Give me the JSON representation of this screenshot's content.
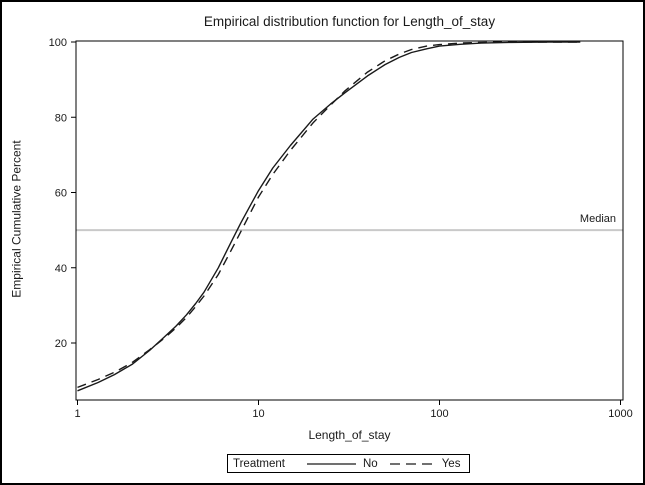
{
  "window": {
    "background": "#ffffff",
    "border_color": "#000000"
  },
  "chart_data": {
    "type": "line",
    "subtype": "empirical-cdf",
    "title": "Empirical distribution function for Length_of_stay",
    "xlabel": "Length_of_stay",
    "ylabel": "Empirical Cumulative Percent",
    "x_scale": "log10",
    "xlim": [
      1,
      1050
    ],
    "ylim": [
      4.8,
      100.4
    ],
    "xticks": [
      1,
      10,
      100,
      1000
    ],
    "yticks": [
      20,
      40,
      60,
      80,
      100
    ],
    "grid": false,
    "axis_color": "#000000",
    "tick_label_color": "#1a1a1a",
    "reference_line": {
      "y": 50,
      "label": "Median",
      "color": "#c9c9c9"
    },
    "legend": {
      "title": "Treatment",
      "position": "bottom-center",
      "boxed": true,
      "entries": [
        {
          "label": "No",
          "line_style": "solid"
        },
        {
          "label": "Yes",
          "line_style": "dashed"
        }
      ]
    },
    "series": [
      {
        "name": "No",
        "line_style": "solid",
        "color": "#1a1a1a",
        "points": [
          [
            1,
            7.3
          ],
          [
            1.3,
            9.5
          ],
          [
            1.6,
            11.6
          ],
          [
            2,
            14.3
          ],
          [
            2.5,
            18.0
          ],
          [
            3,
            21.5
          ],
          [
            3.5,
            24.5
          ],
          [
            4,
            27.5
          ],
          [
            4.5,
            30.5
          ],
          [
            5,
            33.5
          ],
          [
            6,
            40.0
          ],
          [
            7,
            46.5
          ],
          [
            8,
            52.0
          ],
          [
            9,
            56.5
          ],
          [
            10,
            60.5
          ],
          [
            12,
            66.5
          ],
          [
            15,
            72.5
          ],
          [
            20,
            79.5
          ],
          [
            25,
            83.5
          ],
          [
            30,
            86.5
          ],
          [
            40,
            91.0
          ],
          [
            50,
            94.0
          ],
          [
            60,
            95.9
          ],
          [
            70,
            97.2
          ],
          [
            85,
            98.2
          ],
          [
            100,
            98.9
          ],
          [
            130,
            99.4
          ],
          [
            170,
            99.7
          ],
          [
            250,
            99.9
          ],
          [
            400,
            100
          ],
          [
            600,
            100
          ]
        ]
      },
      {
        "name": "Yes",
        "line_style": "dashed",
        "color": "#1a1a1a",
        "points": [
          [
            1,
            8.2
          ],
          [
            1.3,
            10.3
          ],
          [
            1.6,
            12.2
          ],
          [
            2,
            14.8
          ],
          [
            2.5,
            18.2
          ],
          [
            3,
            21.2
          ],
          [
            3.5,
            24.0
          ],
          [
            4,
            26.8
          ],
          [
            4.5,
            29.7
          ],
          [
            5,
            32.5
          ],
          [
            6,
            38.2
          ],
          [
            7,
            44.3
          ],
          [
            8,
            49.7
          ],
          [
            9,
            54.5
          ],
          [
            10,
            58.8
          ],
          [
            12,
            64.8
          ],
          [
            15,
            71.2
          ],
          [
            20,
            78.5
          ],
          [
            25,
            83.2
          ],
          [
            30,
            87.0
          ],
          [
            40,
            92.0
          ],
          [
            50,
            95.0
          ],
          [
            60,
            96.8
          ],
          [
            70,
            98.0
          ],
          [
            85,
            98.9
          ],
          [
            100,
            99.3
          ],
          [
            130,
            99.7
          ],
          [
            170,
            99.9
          ],
          [
            250,
            100
          ],
          [
            400,
            100
          ],
          [
            600,
            100
          ]
        ]
      }
    ]
  }
}
